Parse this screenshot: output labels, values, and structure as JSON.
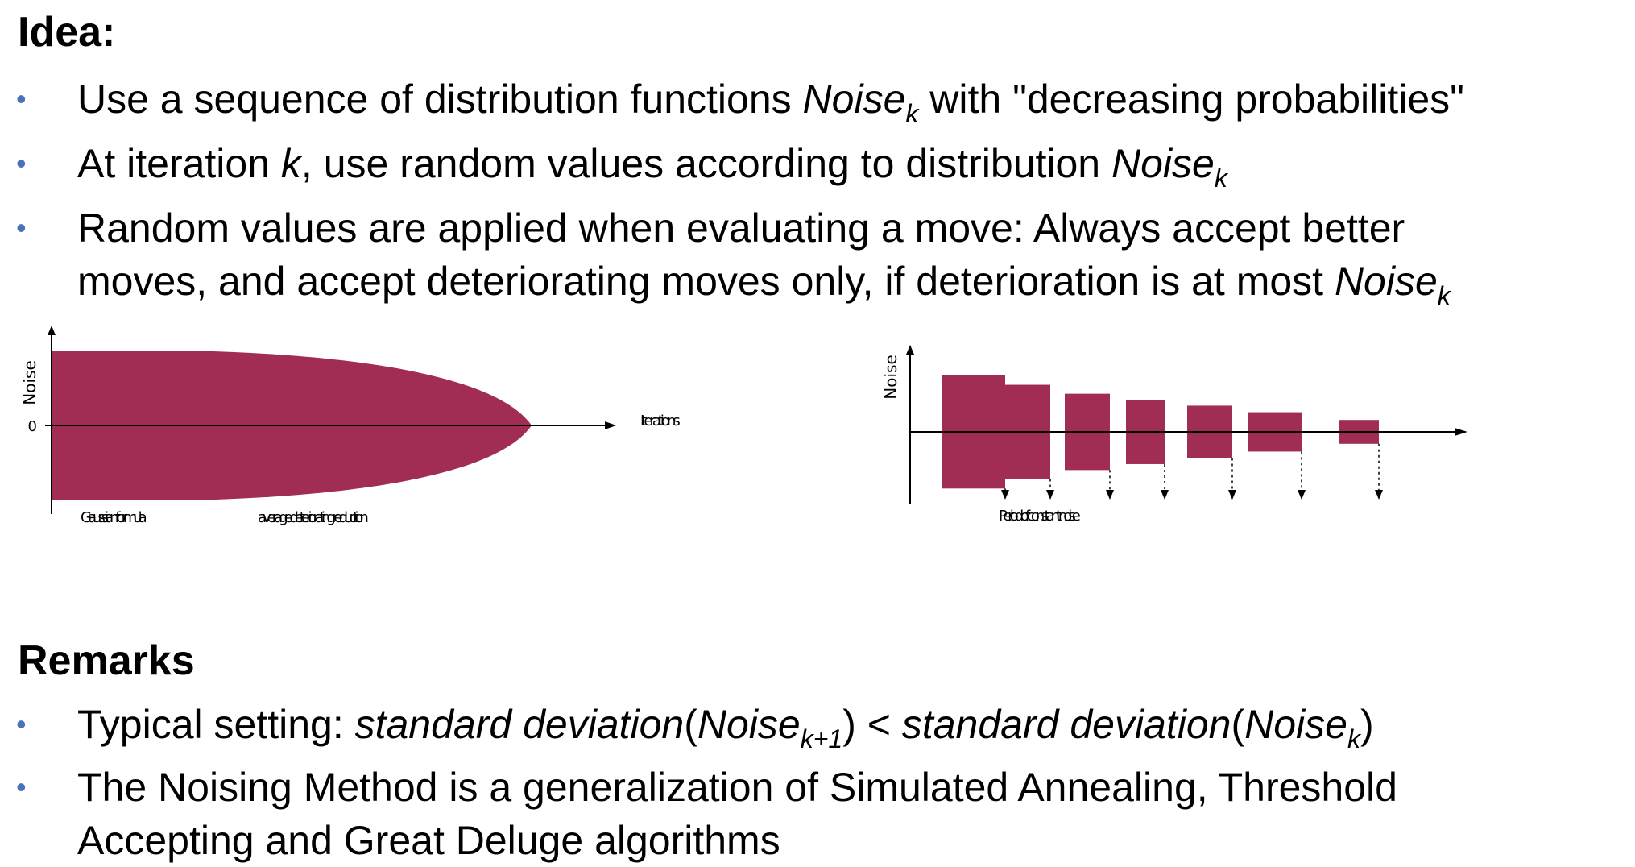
{
  "idea": {
    "heading": "Idea:",
    "bullets": [
      {
        "pre": "Use a sequence of distribution functions ",
        "em": "Noise",
        "sub": "k",
        "post": " with \"decreasing probabilities\""
      },
      {
        "pre": "At iteration ",
        "em1": "k",
        "mid": ", use random values according to distribution ",
        "em": "Noise",
        "sub": "k"
      },
      {
        "line1": "Random values are applied when evaluating a move: Always accept better",
        "pre": "moves, and accept deteriorating moves only, if deterioration is at most ",
        "em": "Noise",
        "sub": "k"
      }
    ]
  },
  "figure_left": {
    "y_axis_label": "Noise",
    "zero_label": "0",
    "x_axis_label": "Iterations",
    "label_a": "Gaussian formula",
    "label_b": "average deteriorating reduction",
    "fill_color": "#a12d54"
  },
  "figure_right": {
    "y_axis_label": "Noise",
    "x_axis_label": "Period of constant noise",
    "fill_color": "#a12d54",
    "bars": [
      0.95,
      0.79,
      0.64,
      0.54,
      0.44,
      0.33,
      0.2
    ]
  },
  "remarks": {
    "heading": "Remarks",
    "b1": {
      "pre": "Typical setting: ",
      "em_a": "standard deviation",
      "p1": "(",
      "noise1": "Noise",
      "sub1": "k+1",
      "p2": ") < ",
      "em_b": "standard deviation",
      "p3": "(",
      "noise2": "Noise",
      "sub2": "k",
      "p4": ")"
    },
    "b2": {
      "line1": "The Noising Method is a generalization of Simulated Annealing, Threshold",
      "line2": "Accepting and Great Deluge algorithms"
    }
  }
}
